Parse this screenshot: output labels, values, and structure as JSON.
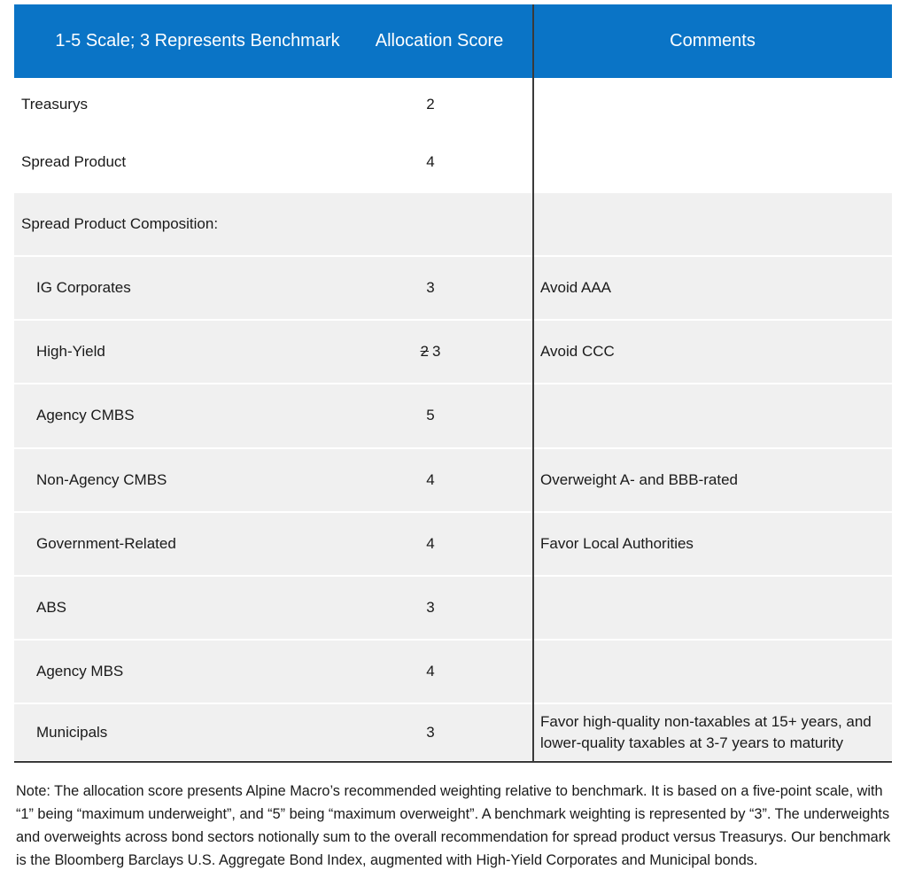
{
  "header": [
    "1-5 Scale; 3 Represents Benchmark",
    "Allocation Score",
    "Comments"
  ],
  "rows": [
    {
      "label": "Treasurys",
      "score": 2
    },
    {
      "label": "Spread Product",
      "score": 4
    }
  ],
  "composition": {
    "title": "Spread Product Composition:",
    "rows": [
      {
        "label": "IG Corporates",
        "score": 3,
        "comment": "Avoid AAA"
      },
      {
        "label": "High-Yield",
        "previous_score": 2,
        "score": 3,
        "comment": "Avoid CCC"
      },
      {
        "label": "Agency CMBS",
        "score": 5
      },
      {
        "label": "Non-Agency CMBS",
        "score": 4,
        "comment": "Overweight A- and BBB-rated"
      },
      {
        "label": "Government-Related",
        "score": 4,
        "comment": "Favor Local Authorities"
      },
      {
        "label": "ABS",
        "score": 3
      },
      {
        "label": "Agency MBS",
        "score": 4
      },
      {
        "label": "Municipals",
        "score": 3,
        "comment": "Favor high-quality non-taxables at 15+ years, and lower-quality taxables at 3-7 years to maturity"
      }
    ]
  },
  "note": "Note: The allocation score presents Alpine Macro’s recommended weighting relative to benchmark. It is based on a five-point scale, with “1” being “maximum underweight”, and “5” being “maximum overweight”. A benchmark weighting is represented by “3”. The underweights and overweights across bond sectors notionally sum to the overall recommendation for spread product versus Treasurys. Our benchmark is the Bloomberg Barclays U.S. Aggregate Bond Index, augmented with High-Yield Corporates and Municipal bonds."
}
